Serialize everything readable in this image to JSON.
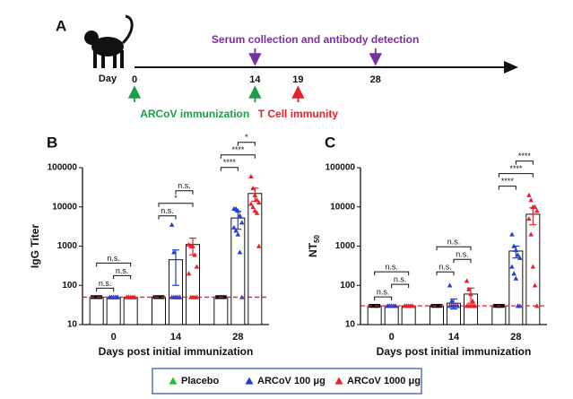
{
  "panel_a": {
    "letter": "A",
    "day_label": "Day",
    "days": [
      0,
      14,
      19,
      28
    ],
    "events": [
      {
        "text": "Serum collection and antibody detection",
        "days": [
          14,
          28
        ],
        "color": "#7a2f9e",
        "side": "above"
      },
      {
        "text": "ARCoV immunization",
        "days": [
          0,
          14
        ],
        "color": "#1a9e4a",
        "side": "below"
      },
      {
        "text": "T Cell immunity",
        "days": [
          19
        ],
        "color": "#e8202a",
        "side": "below"
      }
    ]
  },
  "chart_data": [
    {
      "type": "bar",
      "letter": "B",
      "ylabel": "IgG Titer",
      "xlabel": "Days post initial immunization",
      "categories": [
        "0",
        "14",
        "28"
      ],
      "log": true,
      "ylim": [
        10,
        100000
      ],
      "yticks": [
        10,
        100,
        1000,
        10000,
        100000
      ],
      "threshold": 50,
      "threshold_color": "#e8202a",
      "series": [
        {
          "name": "Placebo",
          "color": "#22c12e",
          "point_color": "#000000",
          "values": [
            50,
            50,
            50
          ],
          "errors": [
            0,
            0,
            0
          ],
          "points": [
            [
              50,
              50,
              50,
              50,
              50,
              50,
              50,
              50,
              50,
              50
            ],
            [
              50,
              50,
              50,
              50,
              50,
              50,
              50,
              50,
              50,
              50
            ],
            [
              50,
              50,
              50,
              50,
              50,
              50,
              50,
              50,
              50,
              50
            ]
          ]
        },
        {
          "name": "ARCoV 100 μg",
          "color": "#1f3fd6",
          "point_color": "#1f3fd6",
          "values": [
            50,
            450,
            5200
          ],
          "errors": [
            0,
            350,
            2500
          ],
          "points": [
            [
              50,
              50,
              50,
              50,
              50,
              50,
              50,
              50,
              50,
              50
            ],
            [
              3500,
              700,
              50,
              50,
              50,
              50,
              50,
              50,
              50,
              50
            ],
            [
              9000,
              9000,
              8000,
              6000,
              4000,
              3000,
              2500,
              2000,
              700,
              50
            ]
          ]
        },
        {
          "name": "ARCoV 1000 μg",
          "color": "#e8202a",
          "point_color": "#e8202a",
          "values": [
            50,
            1100,
            22000
          ],
          "errors": [
            0,
            500,
            8000
          ],
          "points": [
            [
              50,
              50,
              50,
              50,
              50,
              50,
              50,
              50,
              50,
              50
            ],
            [
              1100,
              1000,
              1000,
              600,
              300,
              200,
              50,
              50,
              50,
              50
            ],
            [
              60000,
              30000,
              20000,
              15000,
              13000,
              12000,
              10000,
              8000,
              7000,
              1000
            ]
          ]
        }
      ],
      "annotations": [
        {
          "text": "n.s.",
          "category": 0,
          "pair": [
            0,
            1
          ]
        },
        {
          "text": "n.s.",
          "category": 0,
          "pair": [
            1,
            2
          ]
        },
        {
          "text": "n.s.",
          "category": 0,
          "pair": [
            0,
            2
          ]
        },
        {
          "text": "n.s.",
          "category": 1,
          "pair": [
            0,
            1
          ]
        },
        {
          "text": "*",
          "category": 1,
          "pair": [
            0,
            2
          ]
        },
        {
          "text": "n.s.",
          "category": 1,
          "pair": [
            1,
            2
          ]
        },
        {
          "text": "****",
          "category": 2,
          "pair": [
            0,
            1
          ]
        },
        {
          "text": "****",
          "category": 2,
          "pair": [
            0,
            2
          ]
        },
        {
          "text": "*",
          "category": 2,
          "pair": [
            1,
            2
          ]
        }
      ]
    },
    {
      "type": "bar",
      "letter": "C",
      "ylabel": "NT",
      "ylabel_subscript": "50",
      "xlabel": "Days post initial immunization",
      "categories": [
        "0",
        "14",
        "28"
      ],
      "log": true,
      "ylim": [
        10,
        100000
      ],
      "yticks": [
        10,
        100,
        1000,
        10000,
        100000
      ],
      "threshold": 30,
      "threshold_color": "#e8202a",
      "series": [
        {
          "color": "#22c12e",
          "point_color": "#000000",
          "values": [
            30,
            30,
            30
          ],
          "errors": [
            0,
            0,
            0
          ],
          "points": [
            [
              30,
              30,
              30,
              30,
              30,
              30,
              30,
              30,
              30,
              30
            ],
            [
              30,
              30,
              30,
              30,
              30,
              30,
              30,
              30,
              30,
              30
            ],
            [
              30,
              30,
              30,
              30,
              30,
              30,
              30,
              30,
              30,
              30
            ]
          ]
        },
        {
          "color": "#1f3fd6",
          "point_color": "#1f3fd6",
          "values": [
            30,
            35,
            750
          ],
          "errors": [
            0,
            10,
            250
          ],
          "points": [
            [
              30,
              30,
              30,
              30,
              30,
              30,
              30,
              30,
              30,
              30
            ],
            [
              100,
              40,
              30,
              30,
              30,
              30,
              30,
              30,
              30,
              30
            ],
            [
              2000,
              1000,
              800,
              600,
              500,
              300,
              200,
              150,
              30,
              30
            ]
          ]
        },
        {
          "color": "#e8202a",
          "point_color": "#e8202a",
          "values": [
            30,
            60,
            6500
          ],
          "errors": [
            0,
            25,
            3000
          ],
          "points": [
            [
              30,
              30,
              30,
              30,
              30,
              30,
              30,
              30,
              30,
              30
            ],
            [
              130,
              80,
              60,
              40,
              30,
              30,
              30,
              30,
              30,
              30
            ],
            [
              20000,
              15000,
              10000,
              10000,
              8000,
              5000,
              2000,
              300,
              100,
              30
            ]
          ]
        }
      ],
      "annotations": [
        {
          "text": "n.s.",
          "category": 0,
          "pair": [
            0,
            1
          ]
        },
        {
          "text": "n.s.",
          "category": 0,
          "pair": [
            1,
            2
          ]
        },
        {
          "text": "n.s.",
          "category": 0,
          "pair": [
            0,
            2
          ]
        },
        {
          "text": "n.s.",
          "category": 1,
          "pair": [
            0,
            1
          ]
        },
        {
          "text": "n.s.",
          "category": 1,
          "pair": [
            1,
            2
          ]
        },
        {
          "text": "n.s.",
          "category": 1,
          "pair": [
            0,
            2
          ]
        },
        {
          "text": "****",
          "category": 2,
          "pair": [
            0,
            1
          ]
        },
        {
          "text": "****",
          "category": 2,
          "pair": [
            0,
            2
          ]
        },
        {
          "text": "****",
          "category": 2,
          "pair": [
            1,
            2
          ]
        }
      ]
    }
  ]
}
